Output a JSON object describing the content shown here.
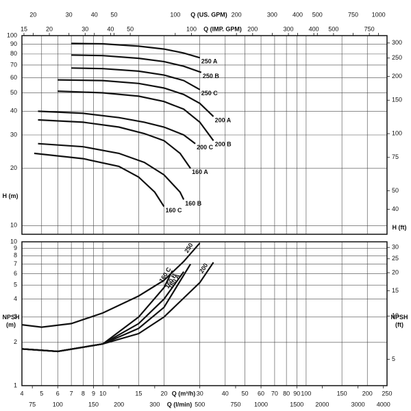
{
  "chart_data": [
    {
      "type": "line",
      "xscale": "log",
      "yscale": "log",
      "xlim": [
        4,
        250
      ],
      "ylim": [
        9,
        100
      ],
      "xticks": [
        4,
        5,
        6,
        7,
        8,
        9,
        10,
        15,
        20,
        30,
        40,
        50,
        60,
        70,
        80,
        90,
        100,
        150,
        200,
        250
      ],
      "yticks": [
        10,
        20,
        30,
        40,
        50,
        60,
        70,
        80,
        90,
        100
      ],
      "ylabel": "H (m)",
      "y2label": "H (ft)",
      "y2lim": [
        29.53,
        328.1
      ],
      "y2ticks": [
        40,
        50,
        75,
        100,
        150,
        200,
        250,
        300
      ],
      "secondary_x": [
        {
          "label": "Q (US. GPM)",
          "position": "top",
          "lim": [
            17.61,
            1100.8
          ],
          "ticks": [
            20,
            30,
            40,
            50,
            100,
            200,
            300,
            400,
            500,
            750,
            1000
          ]
        },
        {
          "label": "Q (IMP. GPM)",
          "position": "top",
          "lim": [
            14.66,
            916.5
          ],
          "ticks": [
            15,
            20,
            30,
            40,
            50,
            100,
            200,
            300,
            400,
            500,
            750
          ]
        }
      ],
      "grid": true,
      "series": [
        {
          "name": "250 A",
          "color": "#111111",
          "x": [
            7,
            10,
            15,
            20,
            25,
            30
          ],
          "values": [
            91,
            90.5,
            88,
            85,
            81,
            76.5
          ]
        },
        {
          "name": "250 B",
          "color": "#111111",
          "x": [
            7,
            10,
            15,
            20,
            25,
            30.5
          ],
          "values": [
            79,
            78.5,
            76,
            73,
            69,
            64
          ]
        },
        {
          "name": "250 C",
          "color": "#111111",
          "x": [
            7,
            10,
            15,
            20,
            25,
            30
          ],
          "values": [
            67.5,
            67,
            65,
            62,
            58,
            52
          ]
        },
        {
          "name": "200 A",
          "color": "#111111",
          "x": [
            6,
            10,
            15,
            20,
            25,
            30,
            35
          ],
          "values": [
            58.5,
            58,
            56,
            53,
            49,
            44,
            37.5
          ]
        },
        {
          "name": "200 B",
          "color": "#111111",
          "x": [
            6,
            10,
            15,
            20,
            25,
            30,
            35
          ],
          "values": [
            51,
            50,
            48,
            45,
            41,
            35,
            28
          ]
        },
        {
          "name": "200 C",
          "color": "#111111",
          "x": [
            4.8,
            8,
            12,
            16,
            20,
            25,
            28.5
          ],
          "values": [
            40,
            39,
            37,
            35,
            33,
            30,
            27
          ]
        },
        {
          "name": "160 A",
          "color": "#111111",
          "x": [
            4.8,
            8,
            12,
            16,
            20,
            24,
            27
          ],
          "values": [
            36,
            35,
            33,
            30.5,
            28,
            24,
            20
          ]
        },
        {
          "name": "160 B",
          "color": "#111111",
          "x": [
            4.8,
            8,
            12,
            16,
            20,
            24,
            25
          ],
          "values": [
            27,
            26,
            24,
            21.5,
            18.5,
            15,
            13.7
          ]
        },
        {
          "name": "160 C",
          "color": "#111111",
          "x": [
            4.6,
            8,
            12,
            15,
            18,
            20
          ],
          "values": [
            24,
            22.5,
            20.5,
            18,
            15,
            12.6
          ]
        }
      ]
    },
    {
      "type": "line",
      "xscale": "log",
      "yscale": "log",
      "xlim": [
        4,
        250
      ],
      "ylim": [
        1,
        10
      ],
      "xlabel": "Q (m³/h)",
      "xticks": [
        4,
        5,
        6,
        7,
        8,
        9,
        10,
        15,
        20,
        30,
        40,
        50,
        60,
        70,
        80,
        90,
        100,
        150,
        200,
        250
      ],
      "yticks": [
        1,
        2,
        3,
        4,
        5,
        6,
        7,
        8,
        9,
        10
      ],
      "ylabel": "NPSH (m)",
      "y2label": "NPSH (ft)",
      "y2lim": [
        3.281,
        32.81
      ],
      "y2ticks": [
        5,
        10,
        15,
        20,
        25,
        30
      ],
      "secondary_x": [
        {
          "label": "Q (l/min)",
          "position": "bottom",
          "lim": [
            66.67,
            4166.7
          ],
          "ticks": [
            75,
            100,
            150,
            200,
            300,
            500,
            750,
            1000,
            1500,
            2000,
            3000,
            4000
          ]
        }
      ],
      "grid": true,
      "series": [
        {
          "name": "250",
          "color": "#111111",
          "x": [
            4,
            5,
            7,
            10,
            15,
            20,
            25,
            30
          ],
          "values": [
            2.65,
            2.55,
            2.7,
            3.2,
            4.2,
            5.4,
            7.3,
            9.8
          ]
        },
        {
          "name": "160 C",
          "color": "#111111",
          "x": [
            4,
            6,
            10,
            15,
            20,
            22
          ],
          "values": [
            1.8,
            1.73,
            1.95,
            3.0,
            4.8,
            6.3
          ]
        },
        {
          "name": "160 B",
          "color": "#111111",
          "x": [
            4,
            6,
            10,
            15,
            20,
            25
          ],
          "values": [
            1.8,
            1.73,
            1.95,
            2.7,
            4.0,
            6.2
          ]
        },
        {
          "name": "160 A",
          "color": "#111111",
          "x": [
            4,
            6,
            10,
            15,
            20,
            27
          ],
          "values": [
            1.8,
            1.73,
            1.95,
            2.5,
            3.5,
            7.0
          ]
        },
        {
          "name": "200",
          "color": "#111111",
          "x": [
            4,
            6,
            10,
            15,
            20,
            30,
            35
          ],
          "values": [
            1.8,
            1.73,
            1.95,
            2.3,
            3.0,
            5.2,
            7.2
          ]
        }
      ]
    }
  ]
}
